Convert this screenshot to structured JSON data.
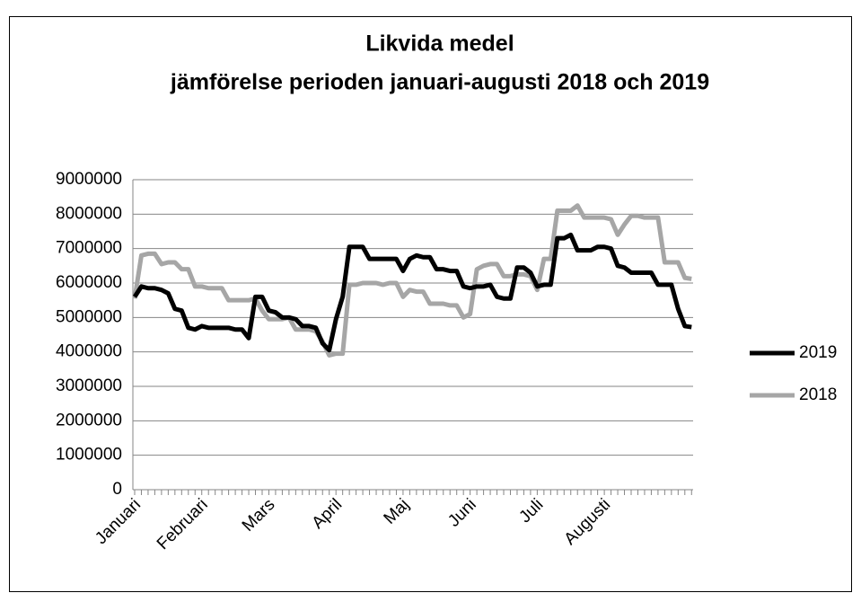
{
  "chart_data": {
    "type": "line",
    "title": "Likvida medel",
    "subtitle": "jämförelse perioden januari-augusti 2018 och 2019",
    "categories": [
      "Januari",
      null,
      null,
      null,
      null,
      null,
      null,
      null,
      null,
      null,
      "Februari",
      null,
      null,
      null,
      null,
      null,
      null,
      null,
      null,
      null,
      "Mars",
      null,
      null,
      null,
      null,
      null,
      null,
      null,
      null,
      null,
      "April",
      null,
      null,
      null,
      null,
      null,
      null,
      null,
      null,
      null,
      "Maj",
      null,
      null,
      null,
      null,
      null,
      null,
      null,
      null,
      null,
      "Juni",
      null,
      null,
      null,
      null,
      null,
      null,
      null,
      null,
      null,
      "Juli",
      null,
      null,
      null,
      null,
      null,
      null,
      null,
      null,
      null,
      "Augusti",
      null,
      null,
      null,
      null,
      null,
      null,
      null,
      null,
      null,
      null,
      null,
      null,
      null
    ],
    "series": [
      {
        "name": "2019",
        "color": "#000000",
        "values": [
          5600000,
          5900000,
          5850000,
          5850000,
          5800000,
          5700000,
          5250000,
          5200000,
          4700000,
          4650000,
          4750000,
          4700000,
          4700000,
          4700000,
          4700000,
          4650000,
          4650000,
          4400000,
          5600000,
          5600000,
          5200000,
          5150000,
          5000000,
          5000000,
          4950000,
          4750000,
          4750000,
          4700000,
          4250000,
          4050000,
          4950000,
          5600000,
          7050000,
          7050000,
          7050000,
          6700000,
          6700000,
          6700000,
          6700000,
          6700000,
          6350000,
          6700000,
          6800000,
          6750000,
          6750000,
          6400000,
          6400000,
          6350000,
          6350000,
          5900000,
          5850000,
          5900000,
          5900000,
          5950000,
          5600000,
          5550000,
          5550000,
          6450000,
          6450000,
          6300000,
          5900000,
          5950000,
          5950000,
          7300000,
          7300000,
          7400000,
          6950000,
          6950000,
          6950000,
          7050000,
          7050000,
          7000000,
          6500000,
          6450000,
          6300000,
          6300000,
          6300000,
          6300000,
          5950000,
          5950000,
          5950000,
          5250000,
          4750000,
          4720000
        ]
      },
      {
        "name": "2018",
        "color": "#a6a6a6",
        "values": [
          5550000,
          6800000,
          6850000,
          6850000,
          6550000,
          6600000,
          6600000,
          6400000,
          6400000,
          5900000,
          5900000,
          5850000,
          5850000,
          5850000,
          5500000,
          5500000,
          5500000,
          5500000,
          5550000,
          5200000,
          4950000,
          4950000,
          4950000,
          5000000,
          4650000,
          4650000,
          4650000,
          4600000,
          4300000,
          3900000,
          3950000,
          3950000,
          5950000,
          5950000,
          6000000,
          6000000,
          6000000,
          5950000,
          6000000,
          6000000,
          5600000,
          5800000,
          5750000,
          5750000,
          5400000,
          5400000,
          5400000,
          5350000,
          5350000,
          5000000,
          5100000,
          6400000,
          6500000,
          6550000,
          6550000,
          6200000,
          6200000,
          6250000,
          6250000,
          6200000,
          5800000,
          6700000,
          6700000,
          8100000,
          8100000,
          8100000,
          8250000,
          7900000,
          7900000,
          7900000,
          7900000,
          7850000,
          7400000,
          7700000,
          7950000,
          7950000,
          7900000,
          7900000,
          7900000,
          6600000,
          6600000,
          6600000,
          6150000,
          6120000
        ]
      }
    ],
    "ylim": [
      0,
      9000000
    ],
    "yticks": [
      0,
      1000000,
      2000000,
      3000000,
      4000000,
      5000000,
      6000000,
      7000000,
      8000000,
      9000000
    ],
    "grid": true,
    "legend": "right"
  }
}
